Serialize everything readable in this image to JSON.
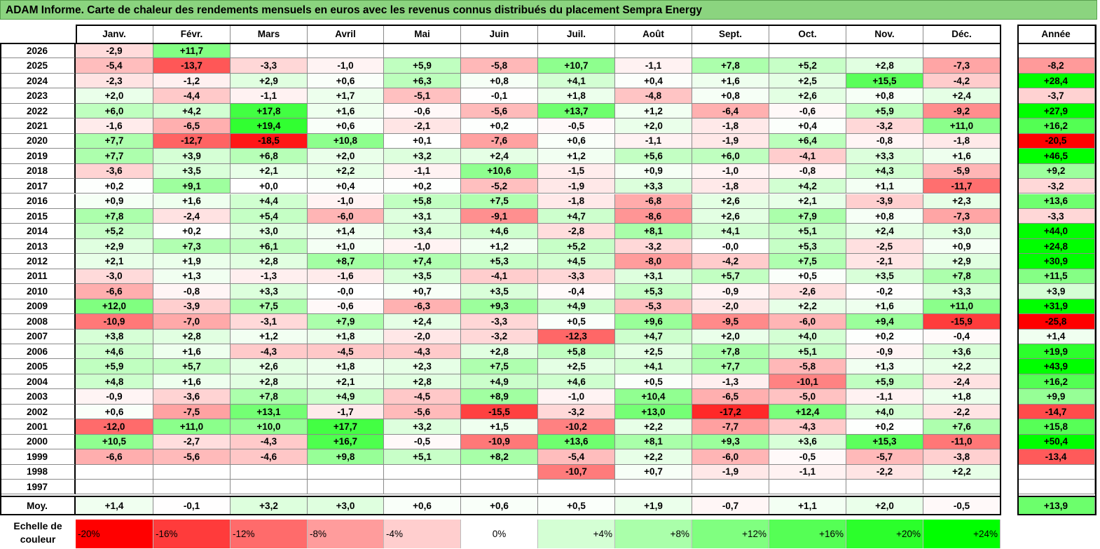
{
  "title": "ADAM Informe. Carte de chaleur des rendements mensuels en euros avec les revenus connus distribués du placement Sempra Energy",
  "chart_data": {
    "type": "heatmap",
    "title": "ADAM Informe. Carte de chaleur des rendements mensuels en euros avec les revenus connus distribués du placement Sempra Energy",
    "columns": [
      "Janv.",
      "Févr.",
      "Mars",
      "Avril",
      "Mai",
      "Juin",
      "Juil.",
      "Août",
      "Sept.",
      "Oct.",
      "Nov.",
      "Déc."
    ],
    "year_column": "Année",
    "average_label": "Moy.",
    "rows": [
      {
        "year": "2026",
        "values": [
          "-2,9",
          "+11,7",
          "",
          "",
          "",
          "",
          "",
          "",
          "",
          "",
          "",
          ""
        ],
        "annual": ""
      },
      {
        "year": "2025",
        "values": [
          "-5,4",
          "-13,7",
          "-3,3",
          "-1,0",
          "+5,9",
          "-5,8",
          "+10,7",
          "-1,1",
          "+7,8",
          "+5,2",
          "+2,8",
          "-7,3"
        ],
        "annual": "-8,2"
      },
      {
        "year": "2024",
        "values": [
          "-2,3",
          "-1,2",
          "+2,9",
          "+0,6",
          "+6,3",
          "+0,8",
          "+4,1",
          "+0,4",
          "+1,6",
          "+2,5",
          "+15,5",
          "-4,2"
        ],
        "annual": "+28,4"
      },
      {
        "year": "2023",
        "values": [
          "+2,0",
          "-4,4",
          "-1,1",
          "+1,7",
          "-5,1",
          "-0,1",
          "+1,8",
          "-4,8",
          "+0,8",
          "+2,6",
          "+0,8",
          "+2,4"
        ],
        "annual": "-3,7"
      },
      {
        "year": "2022",
        "values": [
          "+6,0",
          "+4,2",
          "+17,8",
          "+1,6",
          "-0,6",
          "-5,6",
          "+13,7",
          "+1,2",
          "-6,4",
          "-0,6",
          "+5,9",
          "-9,2"
        ],
        "annual": "+27,9"
      },
      {
        "year": "2021",
        "values": [
          "-1,6",
          "-6,5",
          "+19,4",
          "+0,6",
          "-2,1",
          "+0,2",
          "-0,5",
          "+2,0",
          "-1,8",
          "+0,4",
          "-3,2",
          "+11,0"
        ],
        "annual": "+16,2"
      },
      {
        "year": "2020",
        "values": [
          "+7,7",
          "-12,7",
          "-18,5",
          "+10,8",
          "+0,1",
          "-7,6",
          "+0,6",
          "-1,1",
          "-1,9",
          "+6,4",
          "-0,8",
          "-1,8"
        ],
        "annual": "-20,5"
      },
      {
        "year": "2019",
        "values": [
          "+7,7",
          "+3,9",
          "+6,8",
          "+2,0",
          "+3,2",
          "+2,4",
          "+1,2",
          "+5,6",
          "+6,0",
          "-4,1",
          "+3,3",
          "+1,6"
        ],
        "annual": "+46,5"
      },
      {
        "year": "2018",
        "values": [
          "-3,6",
          "+3,5",
          "+2,1",
          "+2,2",
          "-1,1",
          "+10,6",
          "-1,5",
          "+0,9",
          "-1,0",
          "-0,8",
          "+4,3",
          "-5,9"
        ],
        "annual": "+9,2"
      },
      {
        "year": "2017",
        "values": [
          "+0,2",
          "+9,1",
          "+0,0",
          "+0,4",
          "+0,2",
          "-5,2",
          "-1,9",
          "+3,3",
          "-1,8",
          "+4,2",
          "+1,1",
          "-11,7"
        ],
        "annual": "-3,2"
      },
      {
        "year": "2016",
        "values": [
          "+0,9",
          "+1,6",
          "+4,4",
          "-1,0",
          "+5,8",
          "+7,5",
          "-1,8",
          "-6,8",
          "+2,6",
          "+2,1",
          "-3,9",
          "+2,3"
        ],
        "annual": "+13,6"
      },
      {
        "year": "2015",
        "values": [
          "+7,8",
          "-2,4",
          "+5,4",
          "-6,0",
          "+3,1",
          "-9,1",
          "+4,7",
          "-8,6",
          "+2,6",
          "+7,9",
          "+0,8",
          "-7,3"
        ],
        "annual": "-3,3"
      },
      {
        "year": "2014",
        "values": [
          "+5,2",
          "+0,2",
          "+3,0",
          "+1,4",
          "+3,4",
          "+4,6",
          "-2,8",
          "+8,1",
          "+4,1",
          "+5,1",
          "+2,4",
          "+3,0"
        ],
        "annual": "+44,0"
      },
      {
        "year": "2013",
        "values": [
          "+2,9",
          "+7,3",
          "+6,1",
          "+1,0",
          "-1,0",
          "+1,2",
          "+5,2",
          "-3,2",
          "-0,0",
          "+5,3",
          "-2,5",
          "+0,9"
        ],
        "annual": "+24,8"
      },
      {
        "year": "2012",
        "values": [
          "+2,1",
          "+1,9",
          "+2,8",
          "+8,7",
          "+7,4",
          "+5,3",
          "+4,5",
          "-8,0",
          "-4,2",
          "+7,5",
          "-2,1",
          "+2,9"
        ],
        "annual": "+30,9"
      },
      {
        "year": "2011",
        "values": [
          "-3,0",
          "+1,3",
          "-1,3",
          "-1,6",
          "+3,5",
          "-4,1",
          "-3,3",
          "+3,1",
          "+5,7",
          "+0,5",
          "+3,5",
          "+7,8"
        ],
        "annual": "+11,5"
      },
      {
        "year": "2010",
        "values": [
          "-6,6",
          "-0,8",
          "+3,3",
          "-0,0",
          "+0,7",
          "+3,5",
          "-0,4",
          "+5,3",
          "-0,9",
          "-2,6",
          "-0,2",
          "+3,3"
        ],
        "annual": "+3,9"
      },
      {
        "year": "2009",
        "values": [
          "+12,0",
          "-3,9",
          "+7,5",
          "-0,6",
          "-6,3",
          "+9,3",
          "+4,9",
          "-5,3",
          "-2,0",
          "+2,2",
          "+1,6",
          "+11,0"
        ],
        "annual": "+31,9"
      },
      {
        "year": "2008",
        "values": [
          "-10,9",
          "-7,0",
          "-3,1",
          "+7,9",
          "+2,4",
          "-3,3",
          "+0,5",
          "+9,6",
          "-9,5",
          "-6,0",
          "+9,4",
          "-15,9"
        ],
        "annual": "-25,8"
      },
      {
        "year": "2007",
        "values": [
          "+3,8",
          "+2,8",
          "+1,2",
          "+1,8",
          "-2,0",
          "-3,2",
          "-12,3",
          "+4,7",
          "+2,0",
          "+4,0",
          "+0,2",
          "-0,4"
        ],
        "annual": "+1,4"
      },
      {
        "year": "2006",
        "values": [
          "+4,6",
          "+1,6",
          "-4,3",
          "-4,5",
          "-4,3",
          "+2,8",
          "+5,8",
          "+2,5",
          "+7,8",
          "+5,1",
          "-0,9",
          "+3,6"
        ],
        "annual": "+19,9"
      },
      {
        "year": "2005",
        "values": [
          "+5,9",
          "+5,7",
          "+2,6",
          "+1,8",
          "+2,3",
          "+7,5",
          "+2,5",
          "+4,1",
          "+7,7",
          "-5,8",
          "+1,3",
          "+2,2"
        ],
        "annual": "+43,9"
      },
      {
        "year": "2004",
        "values": [
          "+4,8",
          "+1,6",
          "+2,8",
          "+2,1",
          "+2,8",
          "+4,9",
          "+4,6",
          "+0,5",
          "-1,3",
          "-10,1",
          "+5,9",
          "-2,4"
        ],
        "annual": "+16,2"
      },
      {
        "year": "2003",
        "values": [
          "-0,9",
          "-3,6",
          "+7,8",
          "+4,9",
          "-4,5",
          "+8,9",
          "-1,0",
          "+10,4",
          "-6,5",
          "-5,0",
          "-1,1",
          "+1,8"
        ],
        "annual": "+9,9"
      },
      {
        "year": "2002",
        "values": [
          "+0,6",
          "-7,5",
          "+13,1",
          "-1,7",
          "-5,6",
          "-15,5",
          "-3,2",
          "+13,0",
          "-17,2",
          "+12,4",
          "+4,0",
          "-2,2"
        ],
        "annual": "-14,7"
      },
      {
        "year": "2001",
        "values": [
          "-12,0",
          "+11,0",
          "+10,0",
          "+17,7",
          "+3,2",
          "+1,5",
          "-10,2",
          "+2,2",
          "-7,7",
          "-4,3",
          "+0,2",
          "+7,6"
        ],
        "annual": "+15,8"
      },
      {
        "year": "2000",
        "values": [
          "+10,5",
          "-2,7",
          "-4,3",
          "+16,7",
          "-0,5",
          "-10,9",
          "+13,6",
          "+8,1",
          "+9,3",
          "+3,6",
          "+15,3",
          "-11,0"
        ],
        "annual": "+50,4"
      },
      {
        "year": "1999",
        "values": [
          "-6,6",
          "-5,6",
          "-4,6",
          "+9,8",
          "+5,1",
          "+8,2",
          "-5,4",
          "+2,2",
          "-6,0",
          "-0,5",
          "-5,7",
          "-3,8"
        ],
        "annual": "-13,4"
      },
      {
        "year": "1998",
        "values": [
          "",
          "",
          "",
          "",
          "",
          "",
          "-10,7",
          "+0,7",
          "-1,9",
          "-1,1",
          "-2,2",
          "+2,2"
        ],
        "annual": ""
      },
      {
        "year": "1997",
        "values": [
          "",
          "",
          "",
          "",
          "",
          "",
          "",
          "",
          "",
          "",
          "",
          ""
        ],
        "annual": ""
      }
    ],
    "averages": [
      "+1,4",
      "-0,1",
      "+3,2",
      "+3,0",
      "+0,6",
      "+0,6",
      "+0,5",
      "+1,9",
      "-0,7",
      "+1,1",
      "+2,0",
      "-0,5"
    ],
    "average_annual": "+13,9",
    "color_scale": {
      "label": "Echelle de couleur",
      "stops": [
        {
          "label": "-20%",
          "value": -20,
          "color": "#ff0000"
        },
        {
          "label": "-16%",
          "value": -16,
          "color": "#ff3b3b"
        },
        {
          "label": "-12%",
          "value": -12,
          "color": "#ff6b6b"
        },
        {
          "label": "-8%",
          "value": -8,
          "color": "#ff9c9c"
        },
        {
          "label": "-4%",
          "value": -4,
          "color": "#ffcece"
        },
        {
          "label": "0%",
          "value": 0,
          "color": "#ffffff"
        },
        {
          "label": "+4%",
          "value": 4,
          "color": "#d4ffd4"
        },
        {
          "label": "+8%",
          "value": 8,
          "color": "#aaffaa"
        },
        {
          "label": "+12%",
          "value": 12,
          "color": "#80ff80"
        },
        {
          "label": "+16%",
          "value": 16,
          "color": "#55ff55"
        },
        {
          "label": "+20%",
          "value": 20,
          "color": "#2bff2b"
        },
        {
          "label": "+24%",
          "value": 24,
          "color": "#00ff00"
        }
      ]
    }
  }
}
